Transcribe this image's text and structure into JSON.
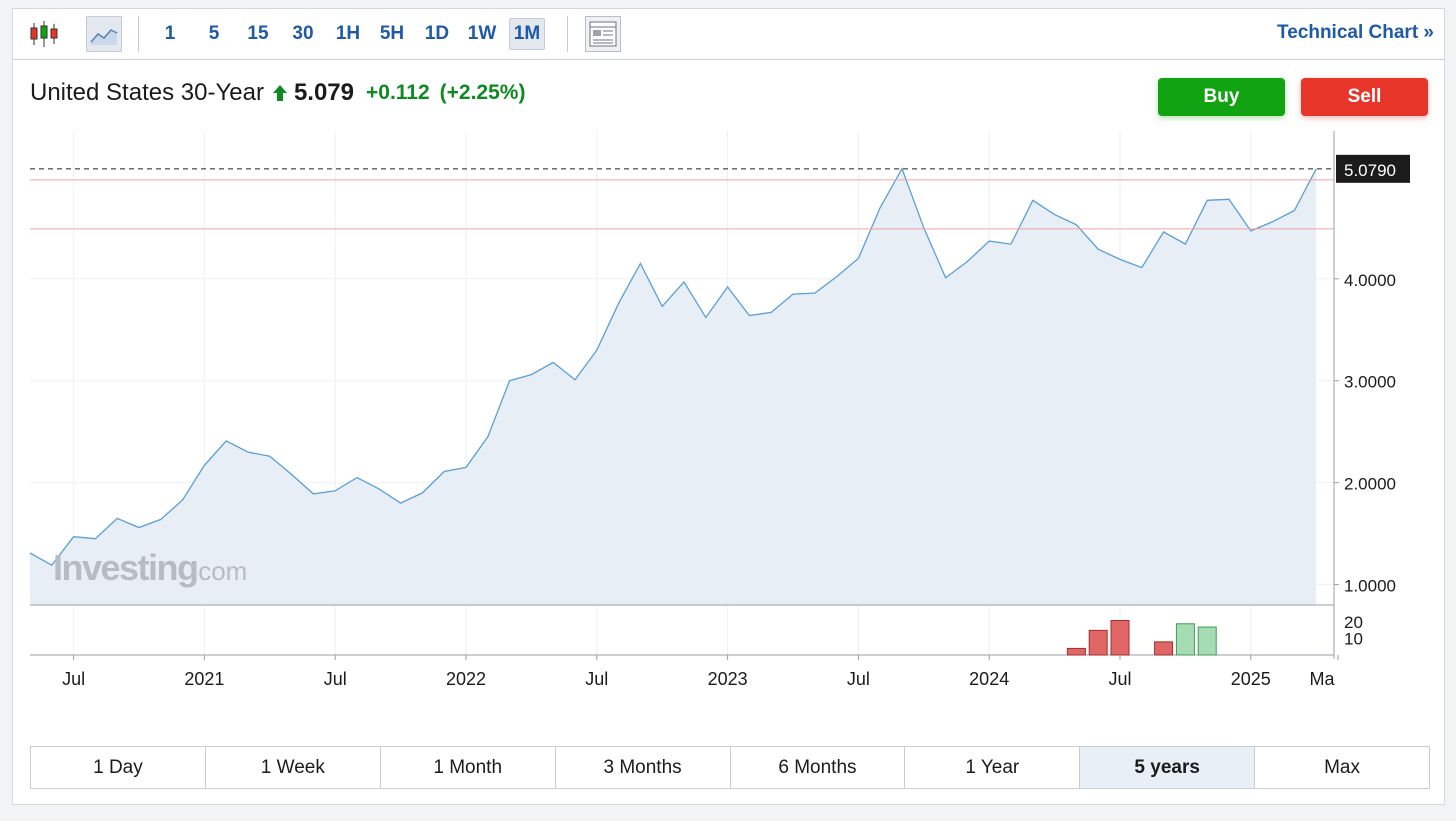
{
  "toolbar": {
    "chart_type_icons": [
      "candlestick-icon",
      "area-chart-icon"
    ],
    "intervals": [
      "1",
      "5",
      "15",
      "30",
      "1H",
      "5H",
      "1D",
      "1W",
      "1M"
    ],
    "active_interval": "1M",
    "layout_icon": "layout-icon",
    "technical_chart_label": "Technical Chart »"
  },
  "instrument": {
    "name": "United States 30-Year",
    "price": "5.079",
    "change": "+0.112",
    "change_pct": "(+2.25%)"
  },
  "actions": {
    "buy_label": "Buy",
    "sell_label": "Sell"
  },
  "watermark": {
    "brand": "Investing",
    "suffix": ".com"
  },
  "colors": {
    "line": "#5b9fd4",
    "area": "#e6edf5",
    "up": "#0f8a23",
    "buy": "#12a312",
    "sell": "#e8352a",
    "link": "#1e5aa8",
    "volume_up": "#a6dcb3",
    "volume_down": "#e06565"
  },
  "chart_data": {
    "type": "area",
    "x": [
      "2020-05",
      "2020-06",
      "2020-07",
      "2020-08",
      "2020-09",
      "2020-10",
      "2020-11",
      "2020-12",
      "2021-01",
      "2021-02",
      "2021-03",
      "2021-04",
      "2021-05",
      "2021-06",
      "2021-07",
      "2021-08",
      "2021-09",
      "2021-10",
      "2021-11",
      "2021-12",
      "2022-01",
      "2022-02",
      "2022-03",
      "2022-04",
      "2022-05",
      "2022-06",
      "2022-07",
      "2022-08",
      "2022-09",
      "2022-10",
      "2022-11",
      "2022-12",
      "2023-01",
      "2023-02",
      "2023-03",
      "2023-04",
      "2023-05",
      "2023-06",
      "2023-07",
      "2023-08",
      "2023-09",
      "2023-10",
      "2023-11",
      "2023-12",
      "2024-01",
      "2024-02",
      "2024-03",
      "2024-04",
      "2024-05",
      "2024-06",
      "2024-07",
      "2024-08",
      "2024-09",
      "2024-10",
      "2024-11",
      "2024-12",
      "2025-01",
      "2025-02",
      "2025-03",
      "2025-04"
    ],
    "values": [
      1.31,
      1.19,
      1.47,
      1.45,
      1.65,
      1.56,
      1.64,
      1.83,
      2.17,
      2.41,
      2.3,
      2.26,
      2.08,
      1.89,
      1.92,
      2.05,
      1.94,
      1.8,
      1.9,
      2.11,
      2.15,
      2.45,
      3.0,
      3.06,
      3.18,
      3.01,
      3.3,
      3.76,
      4.15,
      3.73,
      3.97,
      3.62,
      3.92,
      3.64,
      3.67,
      3.85,
      3.86,
      4.02,
      4.2,
      4.7,
      5.08,
      4.5,
      4.01,
      4.17,
      4.37,
      4.34,
      4.77,
      4.63,
      4.53,
      4.29,
      4.19,
      4.11,
      4.46,
      4.34,
      4.77,
      4.78,
      4.47,
      4.56,
      4.67,
      5.079
    ],
    "yaxis_ticks": [
      "1.0000",
      "2.0000",
      "3.0000",
      "4.0000"
    ],
    "ylim": [
      0.8,
      5.45
    ],
    "last_value_label": "5.0790",
    "last_value": 5.079,
    "reference_lines": [
      4.97,
      4.49
    ],
    "xaxis_labels": [
      {
        "label": "Jul",
        "x": "2020-07"
      },
      {
        "label": "2021",
        "x": "2021-01"
      },
      {
        "label": "Jul",
        "x": "2021-07"
      },
      {
        "label": "2022",
        "x": "2022-01"
      },
      {
        "label": "Jul",
        "x": "2022-07"
      },
      {
        "label": "2023",
        "x": "2023-01"
      },
      {
        "label": "Jul",
        "x": "2023-07"
      },
      {
        "label": "2024",
        "x": "2024-01"
      },
      {
        "label": "Jul",
        "x": "2024-07"
      },
      {
        "label": "2025",
        "x": "2025-01"
      },
      {
        "label": "Ma",
        "x": "2025-05"
      }
    ],
    "volume": {
      "yaxis_ticks": [
        "20",
        "10"
      ],
      "ylim": [
        0,
        28
      ],
      "bars": [
        {
          "x": "2024-05",
          "value": 4,
          "direction": "down"
        },
        {
          "x": "2024-06",
          "value": 15,
          "direction": "down"
        },
        {
          "x": "2024-07",
          "value": 21,
          "direction": "down"
        },
        {
          "x": "2024-09",
          "value": 8,
          "direction": "down"
        },
        {
          "x": "2024-10",
          "value": 19,
          "direction": "up"
        },
        {
          "x": "2024-11",
          "value": 17,
          "direction": "up"
        }
      ]
    },
    "grid": true
  },
  "ranges": [
    "1 Day",
    "1 Week",
    "1 Month",
    "3 Months",
    "6 Months",
    "1 Year",
    "5 years",
    "Max"
  ],
  "active_range": "5 years"
}
